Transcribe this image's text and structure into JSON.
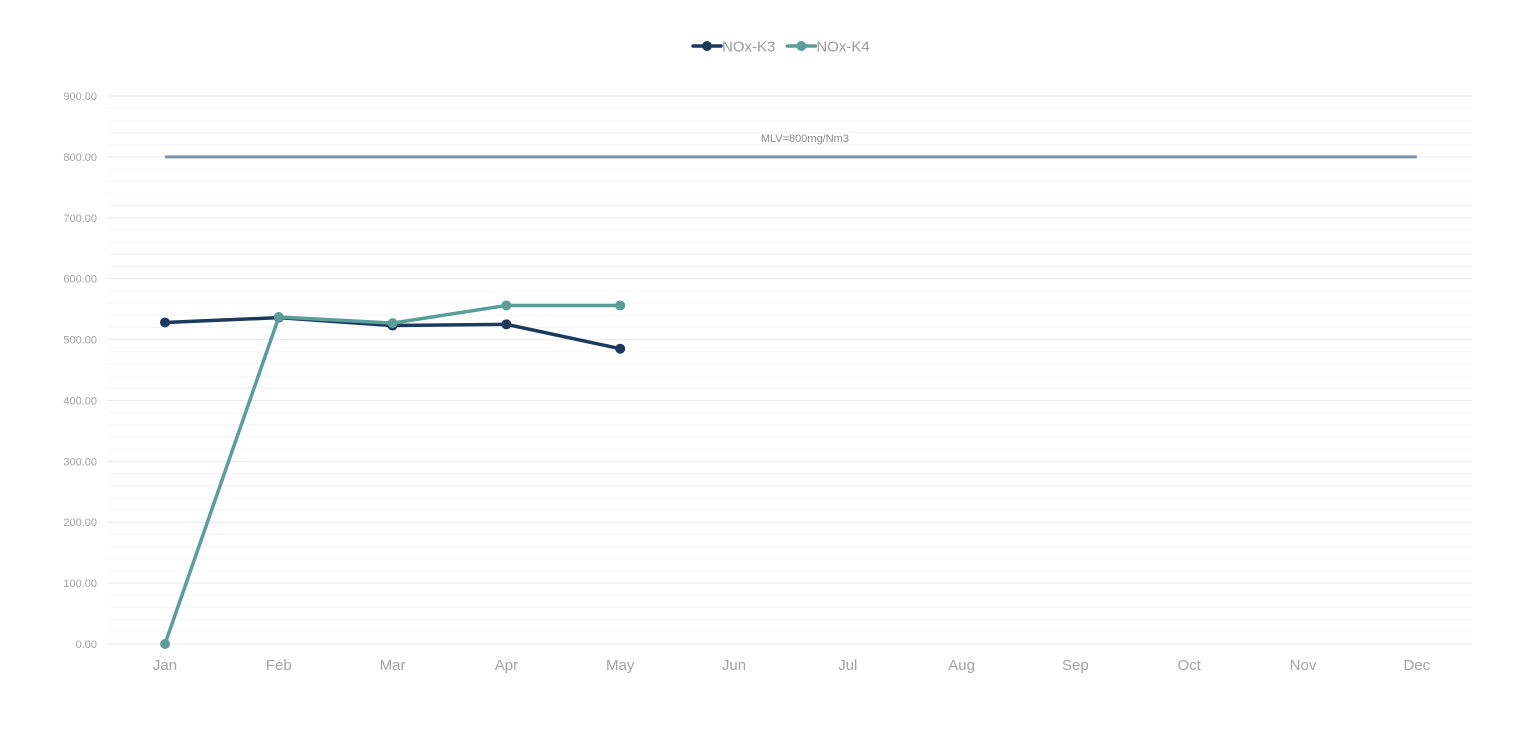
{
  "chart_data": {
    "type": "line",
    "categories": [
      "Jan",
      "Feb",
      "Mar",
      "Apr",
      "May",
      "Jun",
      "Jul",
      "Aug",
      "Sep",
      "Oct",
      "Nov",
      "Dec"
    ],
    "series": [
      {
        "name": "NOx-K3",
        "color": "#1c3a5e",
        "values": [
          528,
          536,
          523,
          525,
          485,
          null,
          null,
          null,
          null,
          null,
          null,
          null
        ]
      },
      {
        "name": "NOx-K4",
        "color": "#5a9e99",
        "values": [
          0,
          537,
          527,
          556,
          556,
          null,
          null,
          null,
          null,
          null,
          null,
          null
        ]
      }
    ],
    "reference_line": {
      "label": "MLV=800mg/Nm3",
      "value": 800,
      "color": "#7d93ad"
    },
    "ylim": [
      0,
      900
    ],
    "y_ticks": [
      "0.00",
      "100.00",
      "200.00",
      "300.00",
      "400.00",
      "500.00",
      "600.00",
      "700.00",
      "800.00",
      "900.00"
    ],
    "title": "",
    "xlabel": "",
    "ylabel": "",
    "grid": true,
    "legend_position": "top-center"
  }
}
